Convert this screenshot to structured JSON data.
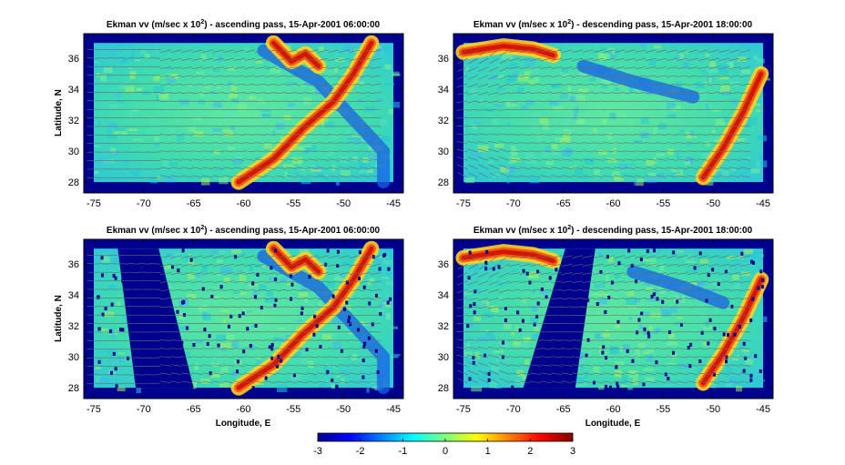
{
  "colors": {
    "ocean_land": "#00008f",
    "mid_field": "#3fdca0",
    "warm_band": "#d01808",
    "cold_patch": "#1660e8",
    "vector": "#6a6a6a",
    "frame": "#000000"
  },
  "chart_data": [
    {
      "type": "heatmap",
      "panel": "top-left",
      "title_prefix": "Ekman vv (m/sec x 10",
      "title_exp": "2",
      "title_suffix": ") - ascending pass, 15-Apr-2001 06:00:00",
      "xlabel": "",
      "ylabel": "Latitude, N",
      "xlim": [
        -76,
        -44
      ],
      "ylim": [
        27.3,
        37.6
      ],
      "xticks": [
        -75,
        -70,
        -65,
        -60,
        -55,
        -50,
        -45
      ],
      "yticks": [
        28,
        30,
        32,
        34,
        36
      ],
      "data_x_range": [
        -75,
        -45
      ],
      "data_y_range": [
        28,
        37
      ],
      "swath_gaps": [],
      "warm_band": [
        [
          -60.5,
          28
        ],
        [
          -57,
          29.5
        ],
        [
          -54,
          31.5
        ],
        [
          -51,
          33.2
        ],
        [
          -49,
          35
        ],
        [
          -47.2,
          37
        ]
      ],
      "warm_band_2": [
        [
          -57,
          37
        ],
        [
          -55.2,
          35.8
        ],
        [
          -53.8,
          36.3
        ],
        [
          -52.5,
          35.5
        ]
      ],
      "cold_zone": [
        [
          -58,
          36.5
        ],
        [
          -52.5,
          34.5
        ],
        [
          -46,
          30
        ],
        [
          -46,
          28
        ]
      ],
      "vector_field": "westward-curving",
      "colormap": "jet",
      "clim": [
        -3,
        3
      ]
    },
    {
      "type": "heatmap",
      "panel": "top-right",
      "title_prefix": "Ekman vv (m/sec x 10",
      "title_exp": "2",
      "title_suffix": ") - descending pass, 15-Apr-2001 18:00:00",
      "xlabel": "",
      "ylabel": "",
      "xlim": [
        -76,
        -44
      ],
      "ylim": [
        27.3,
        37.6
      ],
      "xticks": [
        -75,
        -70,
        -65,
        -60,
        -55,
        -50,
        -45
      ],
      "yticks": [
        28,
        30,
        32,
        34,
        36
      ],
      "data_x_range": [
        -75,
        -45
      ],
      "data_y_range": [
        28,
        37
      ],
      "swath_gaps": [],
      "warm_band": [
        [
          -75,
          36.4
        ],
        [
          -71,
          36.8
        ],
        [
          -68,
          36.6
        ],
        [
          -66,
          36.2
        ]
      ],
      "warm_band_2": [
        [
          -51,
          28.3
        ],
        [
          -49,
          30.2
        ],
        [
          -47,
          32.5
        ],
        [
          -45.2,
          35
        ]
      ],
      "cold_zone": [
        [
          -63,
          35.5
        ],
        [
          -58,
          34.5
        ],
        [
          -52,
          33.5
        ]
      ],
      "vector_field": "westward-straight",
      "colormap": "jet",
      "clim": [
        -3,
        3
      ]
    },
    {
      "type": "heatmap",
      "panel": "bottom-left",
      "title_prefix": "Ekman vv (m/sec x 10",
      "title_exp": "2",
      "title_suffix": ") - ascending pass, 15-Apr-2001 06:00:00",
      "xlabel": "Longitude, E",
      "ylabel": "Latitude, N",
      "xlim": [
        -76,
        -44
      ],
      "ylim": [
        27.3,
        37.6
      ],
      "xticks": [
        -75,
        -70,
        -65,
        -60,
        -55,
        -50,
        -45
      ],
      "yticks": [
        28,
        30,
        32,
        34,
        36
      ],
      "data_x_range": [
        -75,
        -45
      ],
      "data_y_range": [
        28,
        37
      ],
      "swath_gaps": [
        [
          [
            -72.6,
            37
          ],
          [
            -68.5,
            37
          ],
          [
            -65,
            28
          ],
          [
            -70.8,
            28
          ]
        ]
      ],
      "warm_band": [
        [
          -60.5,
          28
        ],
        [
          -57,
          29.5
        ],
        [
          -54,
          31.5
        ],
        [
          -51,
          33.2
        ],
        [
          -49,
          35
        ],
        [
          -47.2,
          37
        ]
      ],
      "warm_band_2": [
        [
          -57,
          37
        ],
        [
          -55.2,
          35.8
        ],
        [
          -53.8,
          36.3
        ],
        [
          -52.5,
          35.5
        ]
      ],
      "cold_zone": [
        [
          -58,
          36.5
        ],
        [
          -52.5,
          34.5
        ],
        [
          -46,
          30
        ],
        [
          -46,
          28
        ]
      ],
      "vector_field": "westward-curving",
      "colormap": "jet",
      "clim": [
        -3,
        3
      ]
    },
    {
      "type": "heatmap",
      "panel": "bottom-right",
      "title_prefix": "Ekman vv (m/sec x 10",
      "title_exp": "2",
      "title_suffix": ") - descending pass, 15-Apr-2001 18:00:00",
      "xlabel": "Longitude, E",
      "ylabel": "",
      "xlim": [
        -76,
        -44
      ],
      "ylim": [
        27.3,
        37.6
      ],
      "xticks": [
        -75,
        -70,
        -65,
        -60,
        -55,
        -50,
        -45
      ],
      "yticks": [
        28,
        30,
        32,
        34,
        36
      ],
      "data_x_range": [
        -75,
        -45
      ],
      "data_y_range": [
        28,
        37
      ],
      "swath_gaps": [
        [
          [
            -64.8,
            37
          ],
          [
            -61.8,
            37
          ],
          [
            -63.8,
            28
          ],
          [
            -69,
            28
          ]
        ]
      ],
      "warm_band": [
        [
          -75,
          36.4
        ],
        [
          -71,
          36.8
        ],
        [
          -68,
          36.6
        ],
        [
          -66,
          36.2
        ]
      ],
      "warm_band_2": [
        [
          -51,
          28.3
        ],
        [
          -49,
          30.2
        ],
        [
          -47,
          32.5
        ],
        [
          -45.2,
          35
        ]
      ],
      "cold_zone": [
        [
          -58,
          35.5
        ],
        [
          -53,
          34.5
        ],
        [
          -49,
          33.5
        ]
      ],
      "vector_field": "westward-straight",
      "colormap": "jet",
      "clim": [
        -3,
        3
      ]
    }
  ],
  "colorbar": {
    "ticks": [
      -3,
      -2,
      -1,
      0,
      1,
      2,
      3
    ],
    "range": [
      -3,
      3
    ],
    "colormap": "jet"
  }
}
